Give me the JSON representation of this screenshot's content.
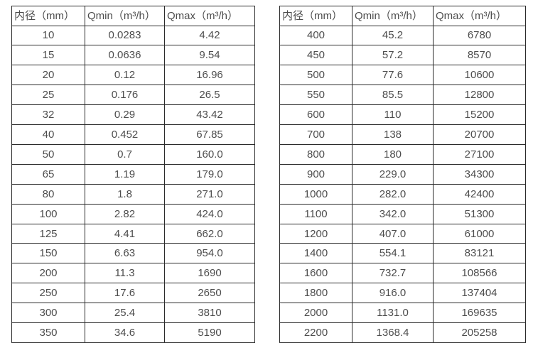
{
  "page": {
    "background_color": "#ffffff",
    "text_color": "#4d4d4d",
    "border_color": "#2b2b2b"
  },
  "tables": [
    {
      "name": "flow-spec-table-small-diameters",
      "headers": [
        "内径（mm）",
        "Qmin（m³/h）",
        "Qmax（m³/h）"
      ],
      "rows": [
        [
          "10",
          "0.0283",
          "4.42"
        ],
        [
          "15",
          "0.0636",
          "9.54"
        ],
        [
          "20",
          "0.12",
          "16.96"
        ],
        [
          "25",
          "0.176",
          "26.5"
        ],
        [
          "32",
          "0.29",
          "43.42"
        ],
        [
          "40",
          "0.452",
          "67.85"
        ],
        [
          "50",
          "0.7",
          "160.0"
        ],
        [
          "65",
          "1.19",
          "179.0"
        ],
        [
          "80",
          "1.8",
          "271.0"
        ],
        [
          "100",
          "2.82",
          "424.0"
        ],
        [
          "125",
          "4.41",
          "662.0"
        ],
        [
          "150",
          "6.63",
          "954.0"
        ],
        [
          "200",
          "11.3",
          "1690"
        ],
        [
          "250",
          "17.6",
          "2650"
        ],
        [
          "300",
          "25.4",
          "3810"
        ],
        [
          "350",
          "34.6",
          "5190"
        ]
      ]
    },
    {
      "name": "flow-spec-table-large-diameters",
      "headers": [
        "内径（mm）",
        "Qmin（m³/h）",
        "Qmax（m³/h）"
      ],
      "rows": [
        [
          "400",
          "45.2",
          "6780"
        ],
        [
          "450",
          "57.2",
          "8570"
        ],
        [
          "500",
          "77.6",
          "10600"
        ],
        [
          "550",
          "85.5",
          "12800"
        ],
        [
          "600",
          "110",
          "15200"
        ],
        [
          "700",
          "138",
          "20700"
        ],
        [
          "800",
          "180",
          "27100"
        ],
        [
          "900",
          "229.0",
          "34300"
        ],
        [
          "1000",
          "282.0",
          "42400"
        ],
        [
          "1100",
          "342.0",
          "51300"
        ],
        [
          "1200",
          "407.0",
          "61000"
        ],
        [
          "1400",
          "554.1",
          "83121"
        ],
        [
          "1600",
          "732.7",
          "108566"
        ],
        [
          "1800",
          "916.0",
          "137404"
        ],
        [
          "2000",
          "1131.0",
          "169635"
        ],
        [
          "2200",
          "1368.4",
          "205258"
        ]
      ]
    }
  ]
}
